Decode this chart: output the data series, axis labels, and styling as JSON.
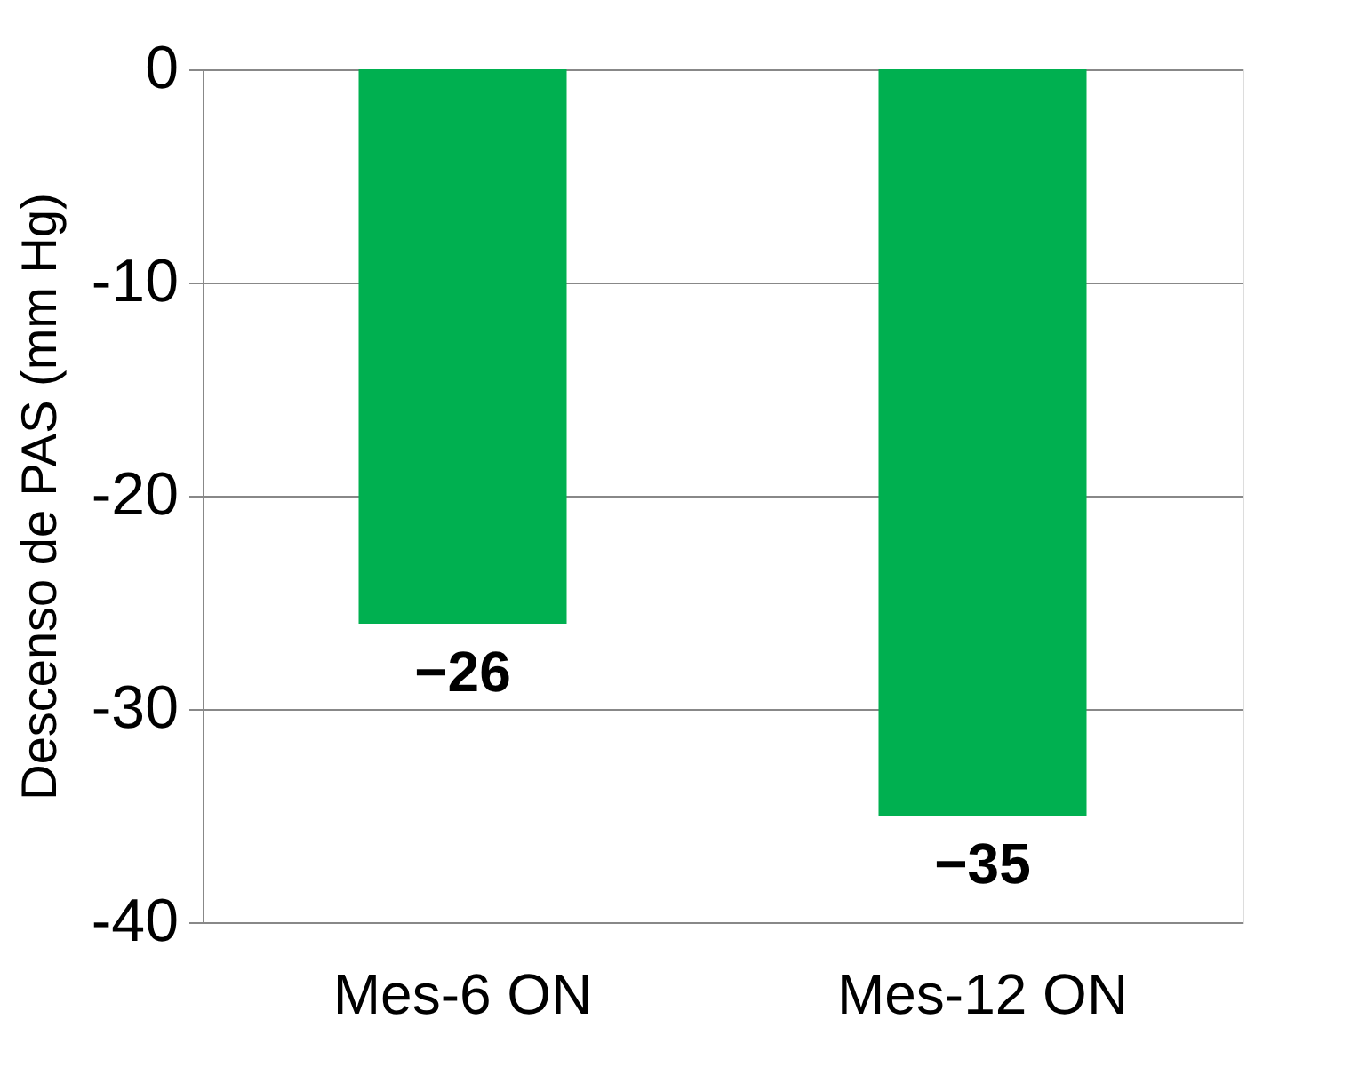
{
  "chart_data": {
    "type": "bar",
    "ylabel": "Descenso  de PAS  (mm Hg)",
    "categories": [
      "Mes-6 ON",
      "Mes-12 ON"
    ],
    "values": [
      -26,
      -35
    ],
    "color": "#00b050",
    "ylim": [
      -40,
      0
    ],
    "yticks": [
      -40,
      -30,
      -20,
      -10,
      0
    ],
    "grid": "y",
    "data_labels": true
  }
}
